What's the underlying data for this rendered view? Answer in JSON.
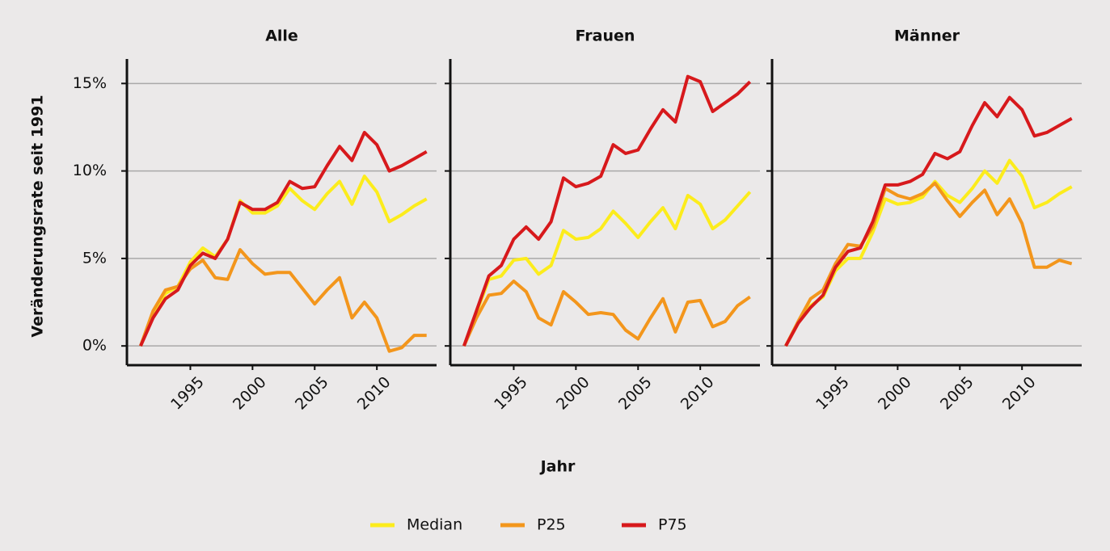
{
  "chart_data": [
    {
      "type": "line",
      "title": "Alle",
      "y_label": "Veränderungsrate seit 1991",
      "x": [
        1991,
        1992,
        1993,
        1994,
        1995,
        1996,
        1997,
        1998,
        1999,
        2000,
        2001,
        2002,
        2003,
        2004,
        2005,
        2006,
        2007,
        2008,
        2009,
        2010,
        2011,
        2012,
        2013,
        2014
      ],
      "series": [
        {
          "name": "Median",
          "color": "#fcec1c",
          "values": [
            0,
            1.8,
            3.0,
            3.4,
            4.8,
            5.6,
            5.1,
            6.1,
            8.3,
            7.6,
            7.6,
            8.0,
            9.0,
            8.3,
            7.8,
            8.7,
            9.4,
            8.1,
            9.7,
            8.8,
            7.1,
            7.5,
            8.0,
            8.4
          ]
        },
        {
          "name": "P25",
          "color": "#f3961c",
          "values": [
            0,
            2.0,
            3.2,
            3.4,
            4.4,
            4.9,
            3.9,
            3.8,
            5.5,
            4.7,
            4.1,
            4.2,
            4.2,
            3.3,
            2.4,
            3.2,
            3.9,
            1.6,
            2.5,
            1.6,
            -0.3,
            -0.1,
            0.6,
            0.6
          ]
        },
        {
          "name": "P75",
          "color": "#d7191c",
          "values": [
            0,
            1.6,
            2.7,
            3.2,
            4.6,
            5.3,
            5.0,
            6.1,
            8.2,
            7.8,
            7.8,
            8.2,
            9.4,
            9.0,
            9.1,
            10.3,
            11.4,
            10.6,
            12.2,
            11.5,
            10.0,
            10.3,
            10.7,
            11.1
          ]
        }
      ],
      "xlim": [
        1989.9,
        2014.8
      ],
      "xticks": [
        1995,
        2000,
        2005,
        2010
      ],
      "ylim": [
        -1.1,
        16.4
      ],
      "yticks": [
        {
          "value": 0,
          "label": "0%"
        },
        {
          "value": 5,
          "label": "5%"
        },
        {
          "value": 10,
          "label": "10%"
        },
        {
          "value": 15,
          "label": "15%"
        }
      ],
      "grid": true
    },
    {
      "type": "line",
      "title": "Frauen",
      "x_label": "Jahr",
      "x": [
        1991,
        1992,
        1993,
        1994,
        1995,
        1996,
        1997,
        1998,
        1999,
        2000,
        2001,
        2002,
        2003,
        2004,
        2005,
        2006,
        2007,
        2008,
        2009,
        2010,
        2011,
        2012,
        2013,
        2014
      ],
      "series": [
        {
          "name": "Median",
          "color": "#fcec1c",
          "values": [
            0,
            1.9,
            3.8,
            4.0,
            4.9,
            5.0,
            4.1,
            4.6,
            6.6,
            6.1,
            6.2,
            6.7,
            7.7,
            7.0,
            6.2,
            7.1,
            7.9,
            6.7,
            8.6,
            8.1,
            6.7,
            7.2,
            8.0,
            8.8
          ]
        },
        {
          "name": "P25",
          "color": "#f3961c",
          "values": [
            0,
            1.6,
            2.9,
            3.0,
            3.7,
            3.1,
            1.6,
            1.2,
            3.1,
            2.5,
            1.8,
            1.9,
            1.8,
            0.9,
            0.4,
            1.6,
            2.7,
            0.8,
            2.5,
            2.6,
            1.1,
            1.4,
            2.3,
            2.8
          ]
        },
        {
          "name": "P75",
          "color": "#d7191c",
          "values": [
            0,
            2.0,
            4.0,
            4.6,
            6.1,
            6.8,
            6.1,
            7.1,
            9.6,
            9.1,
            9.3,
            9.7,
            11.5,
            11.0,
            11.2,
            12.4,
            13.5,
            12.8,
            15.4,
            15.1,
            13.4,
            13.9,
            14.4,
            15.1
          ]
        }
      ],
      "xlim": [
        1989.9,
        2014.8
      ],
      "xticks": [
        1995,
        2000,
        2005,
        2010
      ],
      "ylim": [
        -1.1,
        16.4
      ],
      "yticks": [
        0,
        5,
        10,
        15
      ],
      "grid": true
    },
    {
      "type": "line",
      "title": "Männer",
      "x": [
        1991,
        1992,
        1993,
        1994,
        1995,
        1996,
        1997,
        1998,
        1999,
        2000,
        2001,
        2002,
        2003,
        2004,
        2005,
        2006,
        2007,
        2008,
        2009,
        2010,
        2011,
        2012,
        2013,
        2014
      ],
      "series": [
        {
          "name": "Median",
          "color": "#fcec1c",
          "values": [
            0,
            1.3,
            2.3,
            2.8,
            4.3,
            5.0,
            5.0,
            6.5,
            8.4,
            8.1,
            8.2,
            8.5,
            9.4,
            8.6,
            8.2,
            9.0,
            10.0,
            9.3,
            10.6,
            9.7,
            7.9,
            8.2,
            8.7,
            9.1
          ]
        },
        {
          "name": "P25",
          "color": "#f3961c",
          "values": [
            0,
            1.4,
            2.7,
            3.2,
            4.7,
            5.8,
            5.7,
            6.8,
            9.0,
            8.6,
            8.4,
            8.7,
            9.3,
            8.3,
            7.4,
            8.2,
            8.9,
            7.5,
            8.4,
            7.0,
            4.5,
            4.5,
            4.9,
            4.7
          ]
        },
        {
          "name": "P75",
          "color": "#d7191c",
          "values": [
            0,
            1.3,
            2.2,
            2.9,
            4.5,
            5.4,
            5.6,
            7.1,
            9.2,
            9.2,
            9.4,
            9.8,
            11.0,
            10.7,
            11.1,
            12.6,
            13.9,
            13.1,
            14.2,
            13.5,
            12.0,
            12.2,
            12.6,
            13.0
          ]
        }
      ],
      "xlim": [
        1989.9,
        2014.8
      ],
      "xticks": [
        1995,
        2000,
        2005,
        2010
      ],
      "ylim": [
        -1.1,
        16.4
      ],
      "yticks": [
        0,
        5,
        10,
        15
      ],
      "grid": true
    }
  ]
}
